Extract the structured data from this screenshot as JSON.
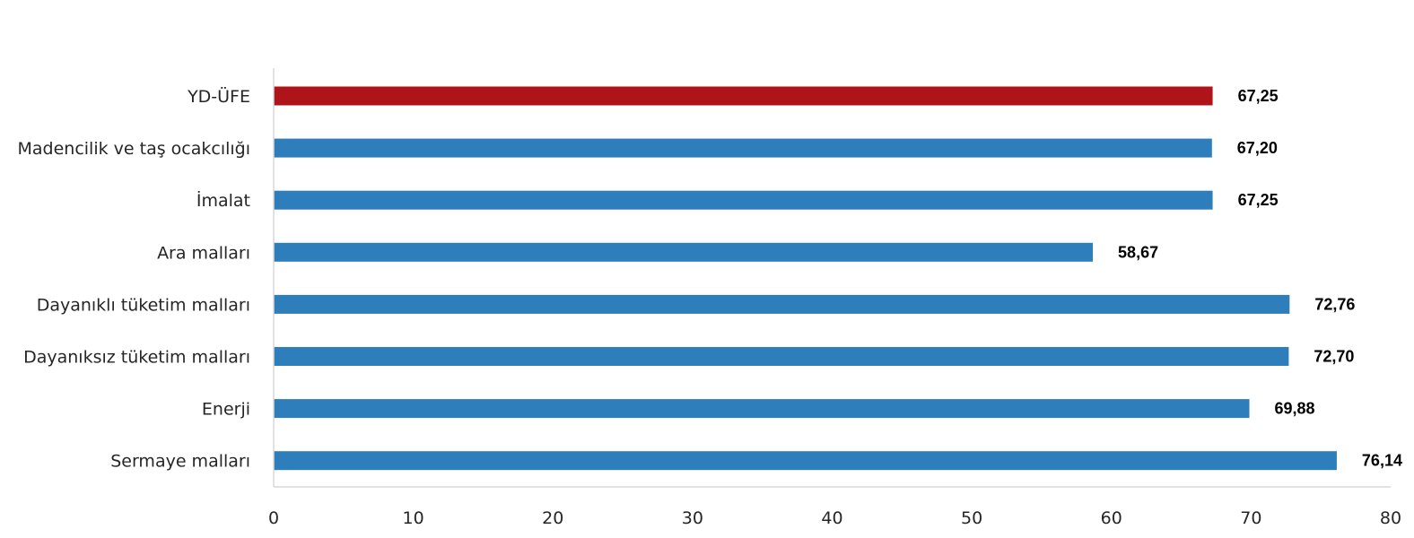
{
  "chart_data": {
    "type": "bar",
    "orientation": "horizontal",
    "categories": [
      "YD-ÜFE",
      "Madencilik ve taş ocakcılığı",
      "İmalat",
      "Ara malları",
      "Dayanıklı tüketim malları",
      "Dayanıksız tüketim malları",
      "Enerji",
      "Sermaye malları"
    ],
    "values": [
      67.25,
      67.2,
      67.25,
      58.67,
      72.76,
      72.7,
      69.88,
      76.14
    ],
    "value_labels": [
      "67,25",
      "67,20",
      "67,25",
      "58,67",
      "72,76",
      "72,70",
      "69,88",
      "76,14"
    ],
    "bar_colors": [
      "#ae1419",
      "#2f7ebc",
      "#2f7ebc",
      "#2f7ebc",
      "#2f7ebc",
      "#2f7ebc",
      "#2f7ebc",
      "#2f7ebc"
    ],
    "xlim": [
      0,
      80
    ],
    "xticks": [
      0,
      10,
      20,
      30,
      40,
      50,
      60,
      70,
      80
    ],
    "grid": false,
    "legend": "none",
    "title": "",
    "xlabel": "",
    "ylabel": ""
  }
}
